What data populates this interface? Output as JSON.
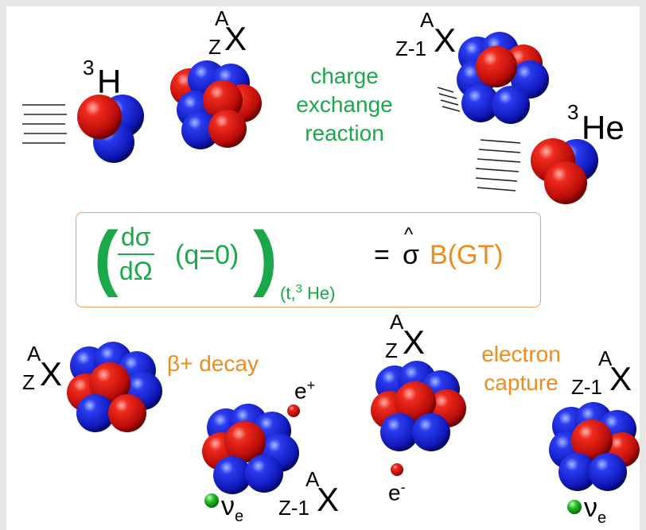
{
  "labels": {
    "tritium": {
      "sup": "3",
      "sym": "H"
    },
    "target_top": {
      "sup": "A",
      "sub": "Z",
      "sym": "X"
    },
    "product_top": {
      "sup": "A",
      "sub": "Z-1",
      "sym": "X"
    },
    "helium3": {
      "sup": "3",
      "sym": "He"
    },
    "parent_beta": {
      "sup": "A",
      "sub": "Z",
      "sym": "X"
    },
    "daughter_beta": {
      "sup": "A",
      "sub": "Z-1",
      "sym": "X"
    },
    "parent_ec": {
      "sup": "A",
      "sub": "Z",
      "sym": "X"
    },
    "daughter_ec": {
      "sup": "A",
      "sub": "Z-1",
      "sym": "X"
    },
    "positron": {
      "sym": "e",
      "sup": "+"
    },
    "electron": {
      "sym": "e",
      "sup": "-"
    },
    "neutrino_beta": {
      "sym": "ν",
      "sub": "e"
    },
    "neutrino_ec": {
      "sym": "ν",
      "sub": "e"
    }
  },
  "reactions": {
    "charge_exchange": [
      "charge",
      "exchange",
      "reaction"
    ],
    "beta_plus": "β+ decay",
    "electron_capture": [
      "electron",
      "capture"
    ]
  },
  "formula": {
    "numerator": "dσ",
    "denominator": "dΩ",
    "argument": "(q=0)",
    "subscript_open": "(t,",
    "subscript_sup": "3",
    "subscript_close": " He)",
    "equals": "=",
    "sigma_hat": "σ",
    "hat": "^",
    "bgt": "B(GT)"
  },
  "colors": {
    "proton": "#e01010",
    "neutron": "#1a2ad8",
    "neutrino": "#22c022",
    "green_text": "#1aa84a",
    "orange_text": "#f08c1e"
  }
}
